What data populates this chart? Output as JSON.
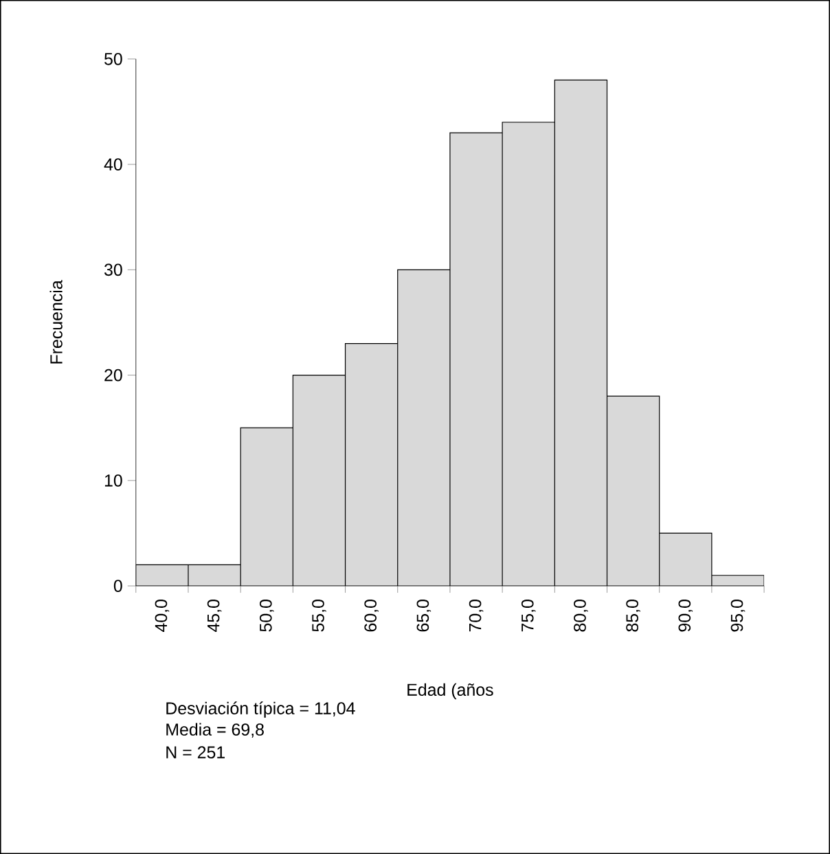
{
  "chart_data": {
    "type": "bar",
    "categories": [
      "40,0",
      "45,0",
      "50,0",
      "55,0",
      "60,0",
      "65,0",
      "70,0",
      "75,0",
      "80,0",
      "85,0",
      "90,0",
      "95,0"
    ],
    "values": [
      2,
      2,
      15,
      20,
      23,
      30,
      43,
      44,
      48,
      18,
      5,
      1
    ],
    "color": "#d9d9d9",
    "xlabel": "Edad (años",
    "ylabel": "Frecuencia",
    "ylim": [
      0,
      50
    ],
    "yticks": [
      0,
      10,
      20,
      30,
      40,
      50
    ],
    "annotations": [
      "Desviación típica = 11,04",
      "Media = 69,8",
      "N = 251"
    ]
  }
}
